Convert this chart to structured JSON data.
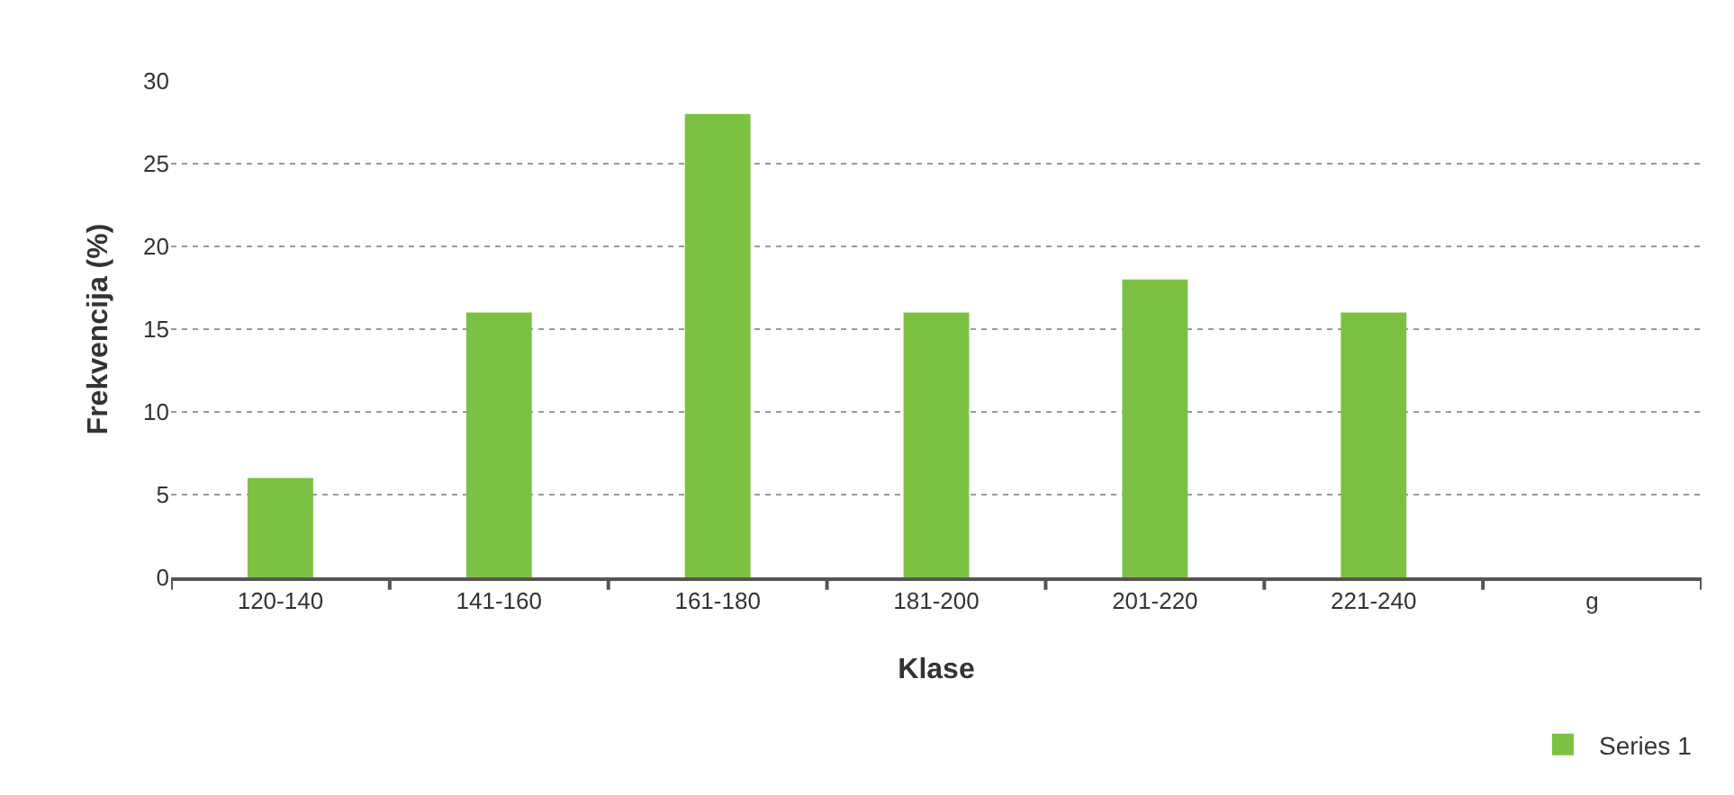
{
  "chart_data": {
    "type": "bar",
    "xlabel": "Klase",
    "ylabel": "Frekvencija (%)",
    "categories": [
      "120-140",
      "141-160",
      "161-180",
      "181-200",
      "201-220",
      "221-240",
      "g"
    ],
    "series": [
      {
        "name": "Series 1",
        "color": "#7dc142",
        "values": [
          6,
          16,
          28,
          16,
          18,
          16,
          null
        ]
      }
    ],
    "ylim": [
      0,
      30
    ],
    "yticks": [
      0,
      5,
      10,
      15,
      20,
      25,
      30
    ],
    "grid": "y",
    "legend": "bottom right"
  }
}
